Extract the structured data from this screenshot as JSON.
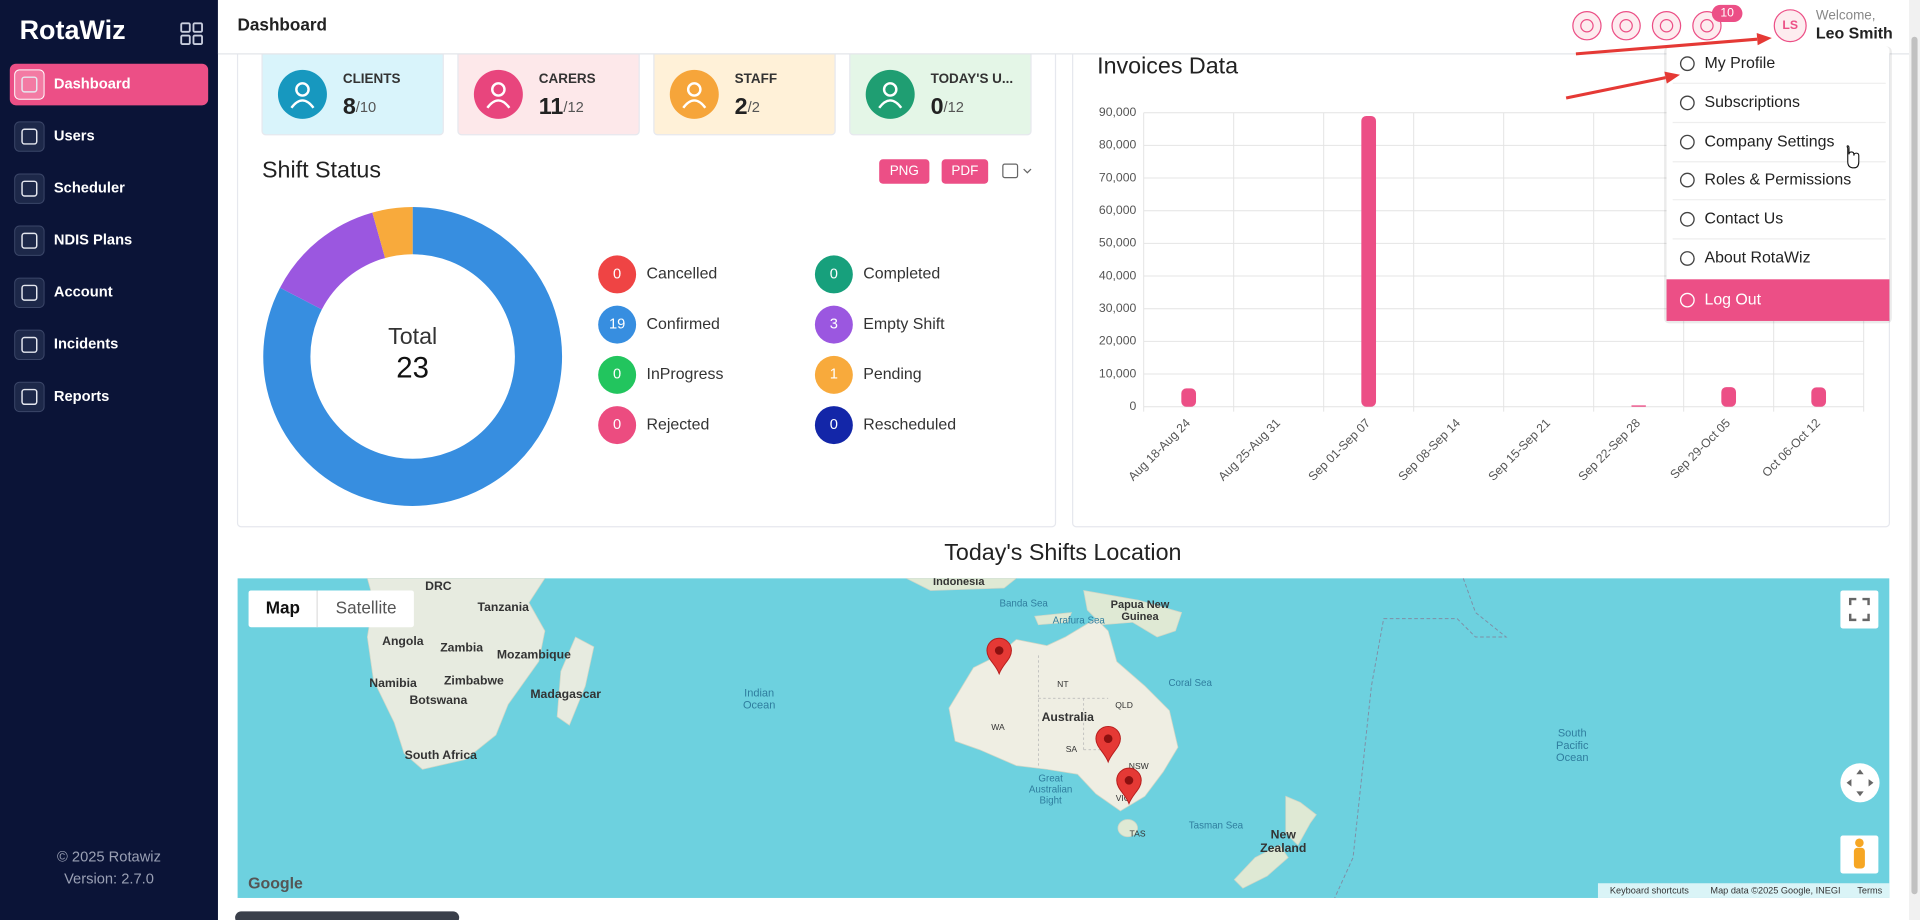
{
  "sidebar": {
    "logo": "RotaWiz",
    "menu": [
      "Dashboard",
      "Users",
      "Scheduler",
      "NDIS Plans",
      "Account",
      "Incidents",
      "Reports"
    ],
    "copyright": "© 2025 Rotawiz",
    "version": "Version: 2.7.0"
  },
  "header": {
    "title": "Dashboard",
    "notifications": 10,
    "avatar": "LS",
    "welcome": "Welcome,",
    "user": "Leo Smith"
  },
  "stats": [
    {
      "label": "CLIENTS",
      "value": 8,
      "total": "/10",
      "color": "#1798bf",
      "background": "#d9f4fb"
    },
    {
      "label": "CARERS",
      "value": 11,
      "total": "/12",
      "color": "#e8457d",
      "background": "#fde8ea"
    },
    {
      "label": "STAFF",
      "value": 2,
      "total": "/2",
      "color": "#f6a53a",
      "background": "#fff1d8"
    },
    {
      "label": "TODAY'S U...",
      "value": 0,
      "total": "/12",
      "color": "#1f9e72",
      "background": "#e4f6e7"
    }
  ],
  "shift_status": {
    "type": "donut",
    "title": "Shift Status",
    "buttons": [
      "PNG",
      "PDF"
    ],
    "center_label": "Total",
    "total": 23,
    "items": [
      {
        "name": "Cancelled",
        "value": 0,
        "color": "#ef4444"
      },
      {
        "name": "Completed",
        "value": 0,
        "color": "#17a07c"
      },
      {
        "name": "Confirmed",
        "value": 19,
        "color": "#378ee0"
      },
      {
        "name": "Empty Shift",
        "value": 3,
        "color": "#9b57e0"
      },
      {
        "name": "InProgress",
        "value": 0,
        "color": "#22c55e"
      },
      {
        "name": "Pending",
        "value": 1,
        "color": "#f8aa3c"
      },
      {
        "name": "Rejected",
        "value": 0,
        "color": "#ec4c80"
      },
      {
        "name": "Rescheduled",
        "value": 0,
        "color": "#1326a8"
      }
    ]
  },
  "invoices": {
    "type": "bar",
    "title": "Invoices Data",
    "categories": [
      "Aug 18-Aug 24",
      "Aug 25-Aug 31",
      "Sep 01-Sep 07",
      "Sep 08-Sep 14",
      "Sep 15-Sep 21",
      "Sep 22-Sep 28",
      "Sep 29-Oct 05",
      "Oct 06-Oct 12"
    ],
    "values": [
      5600,
      0,
      89000,
      0,
      0,
      400,
      6000,
      5900
    ],
    "color": "#ec4f86",
    "ylim": [
      0,
      90000
    ],
    "yticks": [
      0,
      {
        "value": 10000,
        "label": "10,000"
      },
      {
        "value": 20000,
        "label": "20,000"
      },
      {
        "value": 30000,
        "label": "30,000"
      },
      {
        "value": 40000,
        "label": "40,000"
      },
      {
        "value": 50000,
        "label": "50,000"
      },
      {
        "value": 60000,
        "label": "60,000"
      },
      {
        "value": 70000,
        "label": "70,000"
      },
      {
        "value": 80000,
        "label": "80,000"
      },
      {
        "value": 90000,
        "label": "90,000"
      }
    ],
    "grid": true
  },
  "profile_menu": [
    "My Profile",
    "Subscriptions",
    "Company Settings",
    "Roles & Permissions",
    "Contact Us",
    "About RotaWiz",
    "Log Out"
  ],
  "map": {
    "title": "Today's Shifts Location",
    "map_types": [
      "Map",
      "Satellite"
    ],
    "labels": [
      "Indonesia",
      "Banda Sea",
      [
        "Papua New",
        "Guinea"
      ],
      "Arafura Sea",
      "DRC",
      "Tanzania",
      "Angola",
      "Zambia",
      "Mozambique",
      "Namibia",
      "Zimbabwe",
      "Botswana",
      "Madagascar",
      "South Africa",
      [
        "Indian",
        "Ocean"
      ],
      "Coral Sea",
      "NT",
      "QLD",
      "Australia",
      "WA",
      "SA",
      "NSW",
      "VIC",
      [
        "Great",
        "Australian",
        "Bight"
      ],
      "TAS",
      "Tasman Sea",
      [
        "New",
        "Zealand"
      ],
      [
        "South",
        "Pacific",
        "Ocean"
      ]
    ],
    "attribution": [
      "Keyboard shortcuts",
      "Map data ©2025 Google, INEGI",
      "Terms"
    ],
    "logo": "Google"
  }
}
